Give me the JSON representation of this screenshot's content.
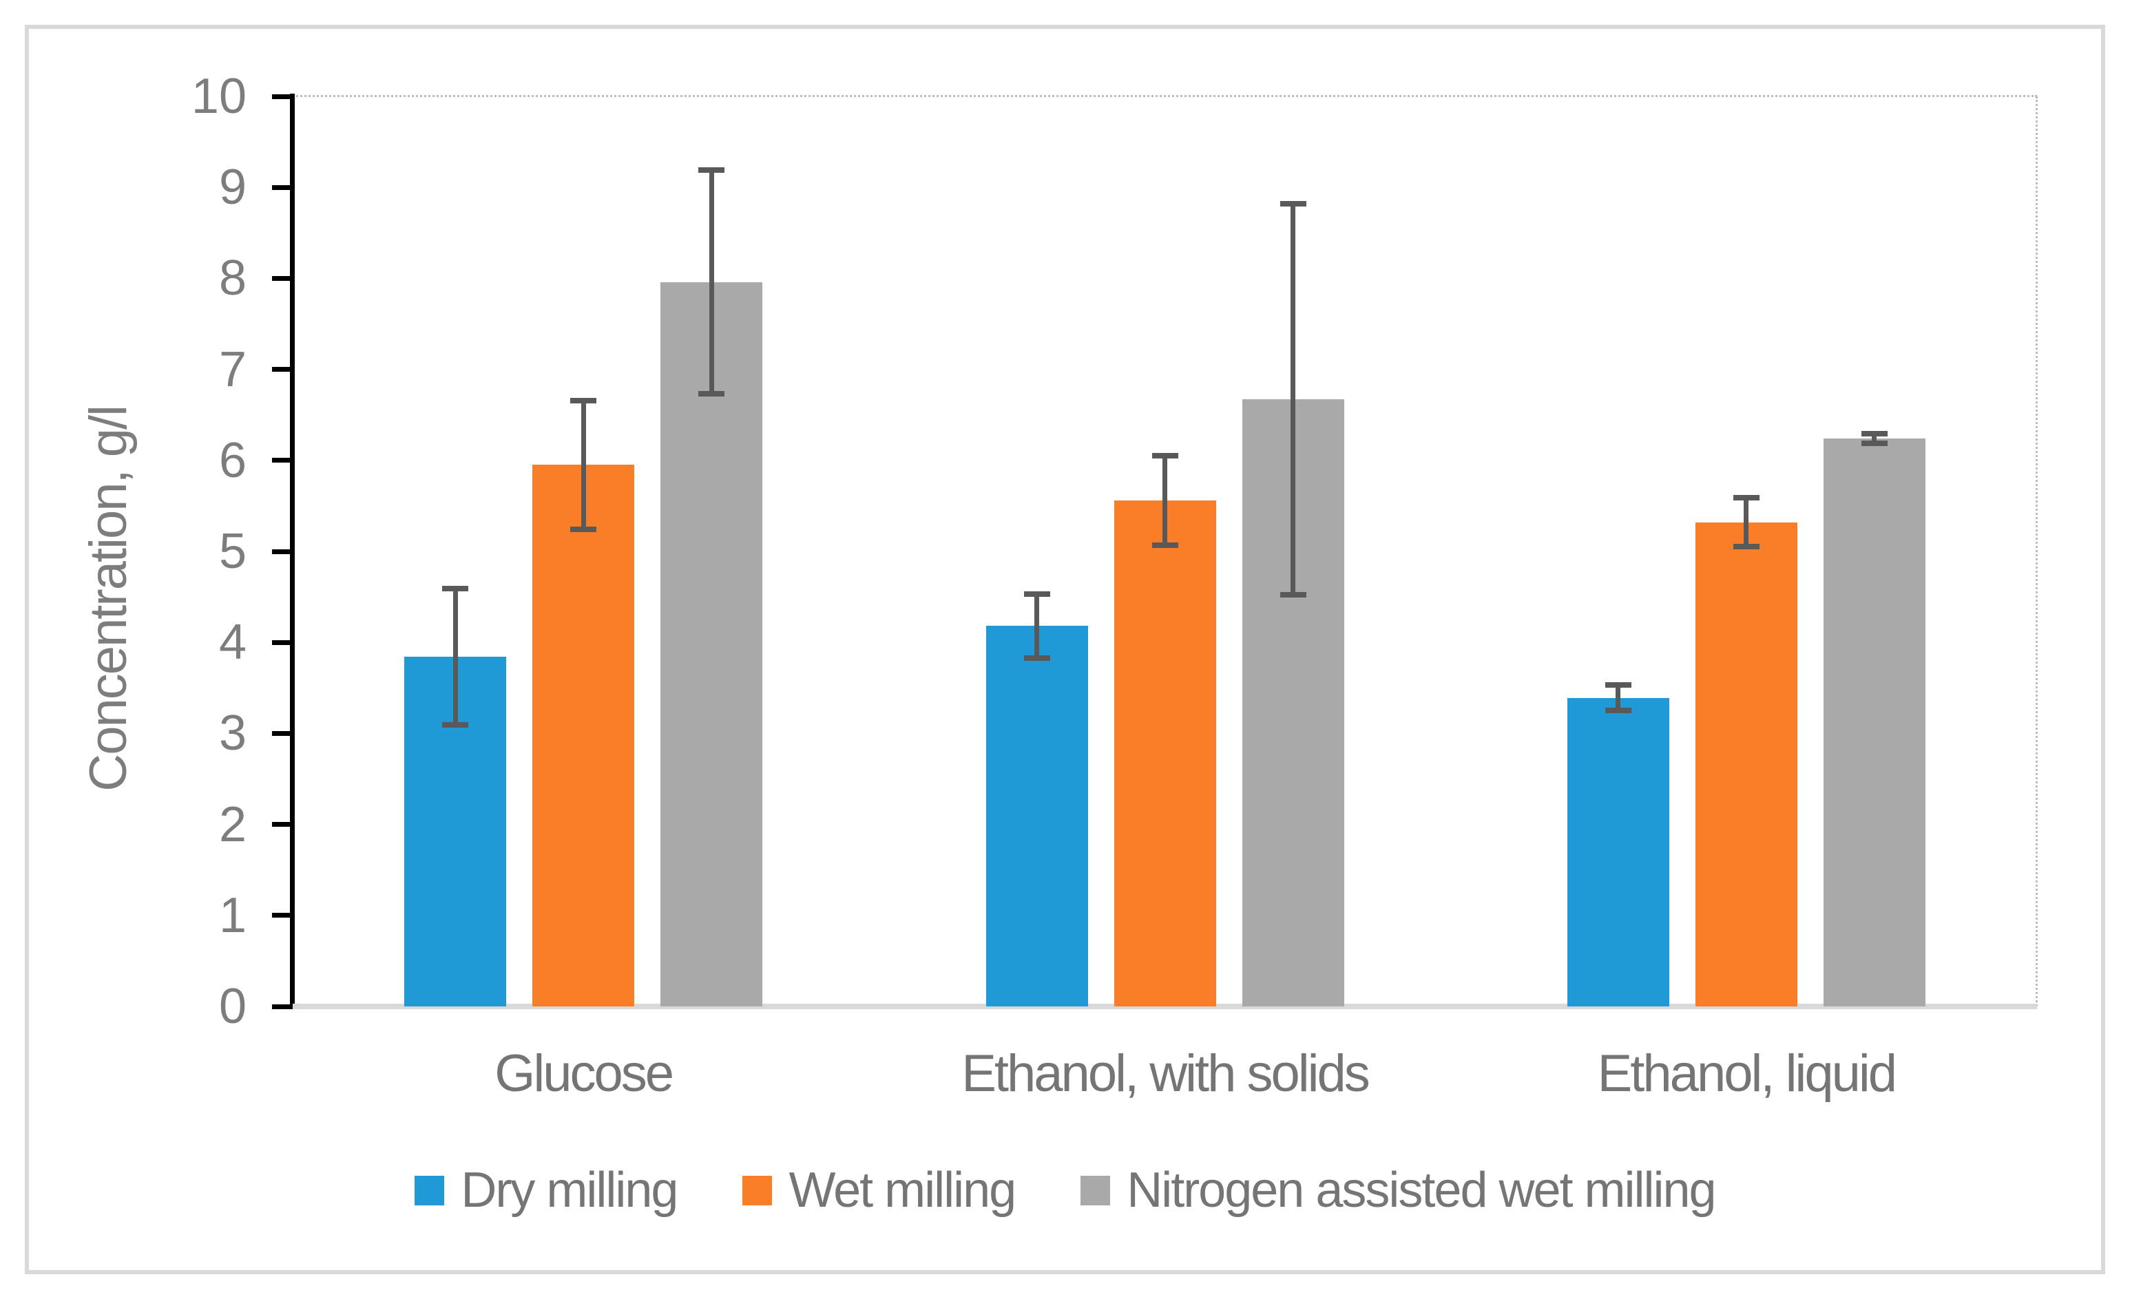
{
  "figure": {
    "background": "#ffffff",
    "outer_border_color": "#d9d9d9",
    "plot_border_color": "#bdbdbd",
    "axis_line_color": "#000000",
    "baseline_color": "#d9d9d9",
    "text_color": "#7d7d7d"
  },
  "chart_data": {
    "type": "bar",
    "title": "",
    "xlabel": "",
    "ylabel": "Concentration, g/l",
    "ylim": [
      0,
      10
    ],
    "yticks": [
      "0",
      "1",
      "2",
      "3",
      "4",
      "5",
      "6",
      "7",
      "8",
      "9",
      "10"
    ],
    "grid": false,
    "legend_position": "bottom",
    "error_bar_color": "#595959",
    "categories": [
      "Glucose",
      "Ethanol, with solids",
      "Ethanol, liquid"
    ],
    "series": [
      {
        "name": "Dry milling",
        "color": "#1f9ad6",
        "values": [
          3.84,
          4.18,
          3.39
        ],
        "errors": [
          0.78,
          0.38,
          0.17
        ]
      },
      {
        "name": "Wet milling",
        "color": "#fa7d28",
        "values": [
          5.95,
          5.56,
          5.32
        ],
        "errors": [
          0.74,
          0.52,
          0.3
        ]
      },
      {
        "name": "Nitrogen assisted wet milling",
        "color": "#a9a9a9",
        "values": [
          7.96,
          6.67,
          6.24
        ],
        "errors": [
          1.26,
          2.18,
          0.08
        ]
      }
    ]
  },
  "legend": {
    "items": [
      {
        "label": "Dry milling"
      },
      {
        "label": "Wet milling"
      },
      {
        "label": "Nitrogen assisted wet milling"
      }
    ]
  }
}
